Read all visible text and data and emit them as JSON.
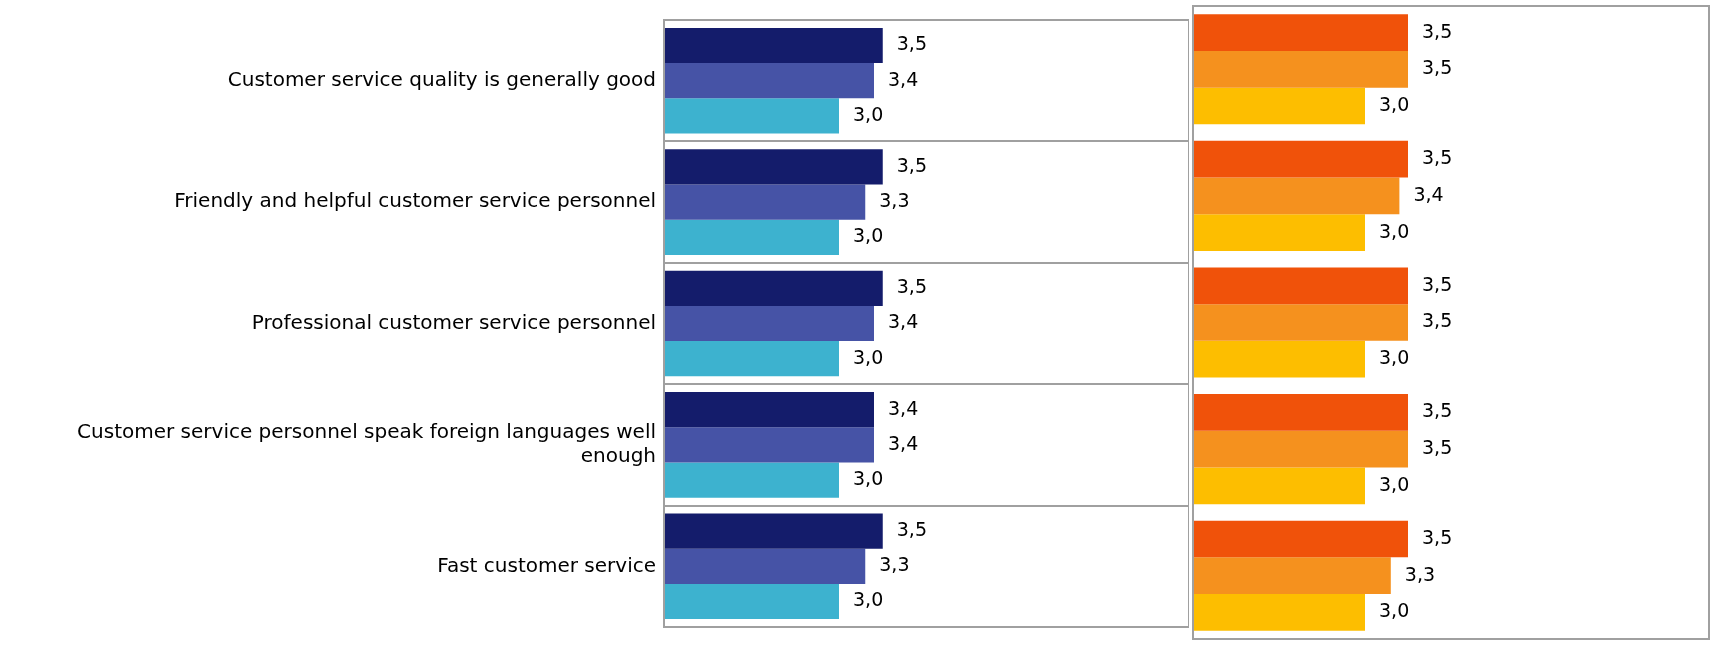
{
  "chart_data": [
    {
      "type": "bar",
      "orientation": "horizontal",
      "categories": [
        "Customer service quality is generally good",
        "Friendly and helpful customer service personnel",
        "Professional customer service personnel",
        "Customer service personnel speak foreign languages well enough",
        "Fast customer service"
      ],
      "xlim": [
        1,
        7
      ],
      "tick_labels": "y",
      "grid": "y",
      "series": [
        {
          "color": "#141c6b",
          "values": [
            3.5,
            3.5,
            3.5,
            3.4,
            3.5
          ],
          "value_labels": [
            "3,5",
            "3,5",
            "3,5",
            "3,4",
            "3,5"
          ]
        },
        {
          "color": "#4653a6",
          "values": [
            3.4,
            3.3,
            3.4,
            3.4,
            3.3
          ],
          "value_labels": [
            "3,4",
            "3,3",
            "3,4",
            "3,4",
            "3,3"
          ]
        },
        {
          "color": "#3db2cf",
          "values": [
            3.0,
            3.0,
            3.0,
            3.0,
            3.0
          ],
          "value_labels": [
            "3,0",
            "3,0",
            "3,0",
            "3,0",
            "3,0"
          ]
        }
      ]
    },
    {
      "type": "bar",
      "orientation": "horizontal",
      "categories": [
        null,
        null,
        null,
        null,
        null
      ],
      "xlim": [
        1,
        7
      ],
      "tick_labels": false,
      "grid": "y",
      "series": [
        {
          "color": "#f0520a",
          "values": [
            3.5,
            3.5,
            3.5,
            3.5,
            3.5
          ],
          "value_labels": [
            "3,5",
            "3,5",
            "3,5",
            "3,5",
            "3,5"
          ]
        },
        {
          "color": "#f5911e",
          "values": [
            3.5,
            3.4,
            3.5,
            3.5,
            3.3
          ],
          "value_labels": [
            "3,5",
            "3,4",
            "3,5",
            "3,5",
            "3,3"
          ]
        },
        {
          "color": "#fdbe00",
          "values": [
            3.0,
            3.0,
            3.0,
            3.0,
            3.0
          ],
          "value_labels": [
            "3,0",
            "3,0",
            "3,0",
            "3,0",
            "3,0"
          ]
        }
      ]
    }
  ]
}
